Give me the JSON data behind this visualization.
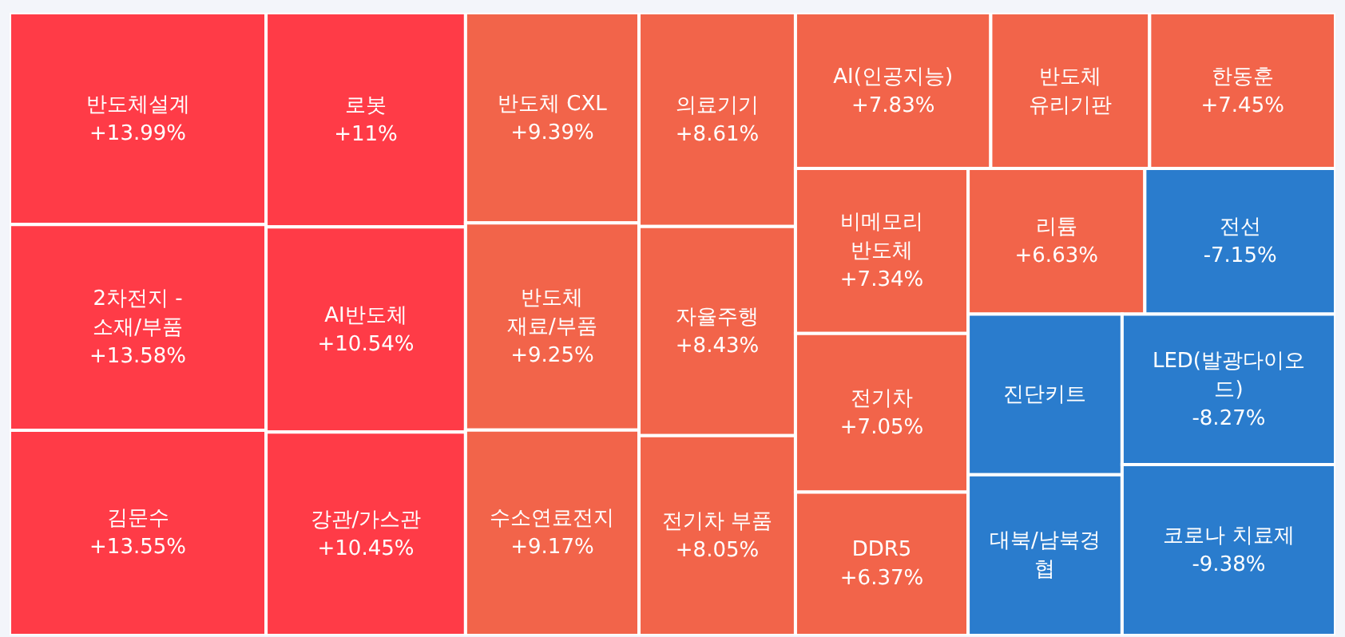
{
  "chart_data": {
    "type": "other",
    "categories": [
      "반도체설계",
      "2차전지 - 소재/부품",
      "김문수",
      "로봇",
      "AI반도체",
      "강관/가스관",
      "반도체 CXL",
      "반도체 재료/부품",
      "수소연료전지",
      "의료기기",
      "자율주행",
      "전기차 부품",
      "AI(인공지능)",
      "반도체 유리기판",
      "한동훈",
      "비메모리 반도체",
      "전기차",
      "DDR5",
      "리튬",
      "전선",
      "진단키트",
      "대북/남북경협",
      "LED(발광다이오드)",
      "코로나 치료제"
    ],
    "values": [
      13.99,
      13.58,
      13.55,
      11,
      10.54,
      10.45,
      9.39,
      9.25,
      9.17,
      8.61,
      8.43,
      8.05,
      7.83,
      null,
      7.45,
      7.34,
      7.05,
      6.37,
      6.63,
      -7.15,
      null,
      null,
      -8.27,
      -9.38
    ],
    "value_labels": [
      "+13.99%",
      "+13.58%",
      "+13.55%",
      "+11%",
      "+10.54%",
      "+10.45%",
      "+9.39%",
      "+9.25%",
      "+9.17%",
      "+8.61%",
      "+8.43%",
      "+8.05%",
      "+7.83%",
      null,
      "+7.45%",
      "+7.34%",
      "+7.05%",
      "+6.37%",
      "+6.63%",
      "-7.15%",
      null,
      null,
      "-8.27%",
      "-9.38%"
    ],
    "colors": [
      "#ff3b47",
      "#ff3b47",
      "#ff3b47",
      "#ff3b47",
      "#ff3b47",
      "#ff3b47",
      "#f2644a",
      "#f2644a",
      "#f2644a",
      "#f2644a",
      "#f2644a",
      "#f2644a",
      "#f2644a",
      "#f2644a",
      "#f2644a",
      "#f2644a",
      "#f2644a",
      "#f2644a",
      "#f2644a",
      "#2a7ccd",
      "#2a7ccd",
      "#2a7ccd",
      "#2a7ccd",
      "#2a7ccd"
    ]
  }
}
